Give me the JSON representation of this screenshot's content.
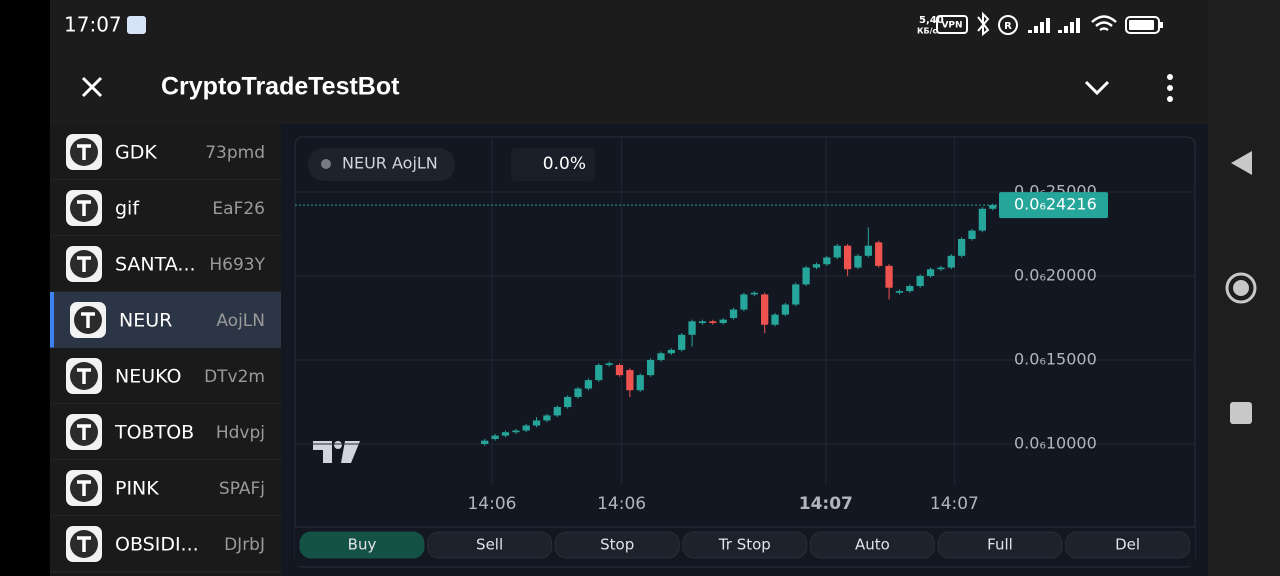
{
  "status_bar": {
    "time": "17:07",
    "speed": "5,40",
    "speed_unit": "КБ/с",
    "vpn": "VPN"
  },
  "header": {
    "title": "CryptoTradeTestBot"
  },
  "list": {
    "selected_index": 3,
    "items": [
      {
        "name": "GDK",
        "code": "73pmd"
      },
      {
        "name": "gif",
        "code": "EaF26"
      },
      {
        "name": "SANTA...",
        "code": "H693Y"
      },
      {
        "name": "NEUR",
        "code": "AojLN"
      },
      {
        "name": "NEUKO",
        "code": "DTv2m"
      },
      {
        "name": "TOBTOB",
        "code": "Hdvpj"
      },
      {
        "name": "PINK",
        "code": "SPAFj"
      },
      {
        "name": "OBSIDI...",
        "code": "DJrbJ"
      }
    ]
  },
  "chart_data": {
    "type": "candlestick",
    "legend_label": "NEUR AojLN",
    "change": "0.0%",
    "up_color": "#26a69a",
    "down_color": "#ef5350",
    "grid": true,
    "xlim": [
      -18.3,
      49.7
    ],
    "xticks": [
      {
        "value": 0.7,
        "label": "14:06"
      },
      {
        "value": 13.2,
        "label": "14:06"
      },
      {
        "value": 32.9,
        "label": "14:07"
      },
      {
        "value": 45.3,
        "label": "14:07"
      }
    ],
    "ylim": [
      7.56e-08,
      2.827e-07
    ],
    "yticks": [
      {
        "value": 1e-07,
        "label": "0.0₆10000"
      },
      {
        "value": 1.5e-07,
        "label": "0.0₆15000"
      },
      {
        "value": 2e-07,
        "label": "0.0₆20000"
      },
      {
        "value": 2.5e-07,
        "label": "0.0₆25000"
      }
    ],
    "last_price": {
      "value": 2.4216e-07,
      "label": "0.0₆24216"
    },
    "open": [
      1e-07,
      1.03e-07,
      1.05e-07,
      1.07e-07,
      1.08e-07,
      1.11e-07,
      1.14e-07,
      1.17e-07,
      1.22e-07,
      1.28e-07,
      1.33e-07,
      1.38e-07,
      1.47e-07,
      1.47e-07,
      1.44e-07,
      1.32e-07,
      1.41e-07,
      1.5e-07,
      1.54e-07,
      1.56e-07,
      1.65e-07,
      1.72e-07,
      1.73e-07,
      1.72e-07,
      1.75e-07,
      1.8e-07,
      1.89e-07,
      1.89e-07,
      1.71e-07,
      1.77e-07,
      1.83e-07,
      1.95e-07,
      2.05e-07,
      2.07e-07,
      2.11e-07,
      2.18e-07,
      2.05e-07,
      2.12e-07,
      2.2e-07,
      2.06e-07,
      1.9e-07,
      1.91e-07,
      1.94e-07,
      2e-07,
      2.04e-07,
      2.05e-07,
      2.12e-07,
      2.22e-07,
      2.27e-07,
      2.4e-07
    ],
    "close": [
      1.02e-07,
      1.05e-07,
      1.07e-07,
      1.08e-07,
      1.11e-07,
      1.14e-07,
      1.17e-07,
      1.22e-07,
      1.28e-07,
      1.33e-07,
      1.38e-07,
      1.47e-07,
      1.48e-07,
      1.41e-07,
      1.32e-07,
      1.41e-07,
      1.5e-07,
      1.54e-07,
      1.56e-07,
      1.65e-07,
      1.73e-07,
      1.73e-07,
      1.72e-07,
      1.74e-07,
      1.8e-07,
      1.89e-07,
      1.9e-07,
      1.71e-07,
      1.77e-07,
      1.83e-07,
      1.95e-07,
      2.05e-07,
      2.07e-07,
      2.11e-07,
      2.18e-07,
      2.04e-07,
      2.12e-07,
      2.18e-07,
      2.06e-07,
      1.93e-07,
      1.91e-07,
      1.94e-07,
      2e-07,
      2.04e-07,
      2.05e-07,
      2.12e-07,
      2.22e-07,
      2.27e-07,
      2.4e-07,
      2.4216e-07
    ],
    "high": [
      1.03e-07,
      1.06e-07,
      1.08e-07,
      1.09e-07,
      1.12e-07,
      1.16e-07,
      1.18e-07,
      1.23e-07,
      1.29e-07,
      1.34e-07,
      1.39e-07,
      1.48e-07,
      1.49e-07,
      1.48e-07,
      1.45e-07,
      1.42e-07,
      1.51e-07,
      1.55e-07,
      1.57e-07,
      1.66e-07,
      1.74e-07,
      1.74e-07,
      1.74e-07,
      1.75e-07,
      1.81e-07,
      1.9e-07,
      1.91e-07,
      1.9e-07,
      1.78e-07,
      1.84e-07,
      1.96e-07,
      2.06e-07,
      2.08e-07,
      2.12e-07,
      2.19e-07,
      2.19e-07,
      2.13e-07,
      2.29e-07,
      2.21e-07,
      2.07e-07,
      1.92e-07,
      1.95e-07,
      2.01e-07,
      2.05e-07,
      2.06e-07,
      2.13e-07,
      2.23e-07,
      2.28e-07,
      2.41e-07,
      2.43e-07
    ],
    "low": [
      9.9e-08,
      1.02e-07,
      1.04e-07,
      1.06e-07,
      1.07e-07,
      1.1e-07,
      1.13e-07,
      1.16e-07,
      1.21e-07,
      1.27e-07,
      1.32e-07,
      1.37e-07,
      1.46e-07,
      1.4e-07,
      1.28e-07,
      1.31e-07,
      1.4e-07,
      1.49e-07,
      1.53e-07,
      1.55e-07,
      1.58e-07,
      1.71e-07,
      1.71e-07,
      1.71e-07,
      1.74e-07,
      1.79e-07,
      1.88e-07,
      1.66e-07,
      1.7e-07,
      1.76e-07,
      1.82e-07,
      1.94e-07,
      2.04e-07,
      2.06e-07,
      2.1e-07,
      2e-07,
      2.04e-07,
      2.11e-07,
      2.05e-07,
      1.86e-07,
      1.89e-07,
      1.9e-07,
      1.93e-07,
      1.99e-07,
      2.03e-07,
      2.04e-07,
      2.11e-07,
      2.21e-07,
      2.26e-07,
      2.39e-07
    ]
  },
  "buttons": [
    "Buy",
    "Sell",
    "Stop",
    "Tr Stop",
    "Auto",
    "Full",
    "Del"
  ]
}
